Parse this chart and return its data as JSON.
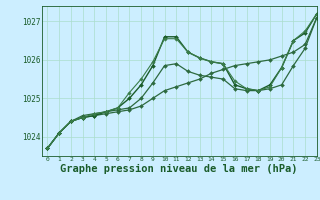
{
  "background_color": "#cceeff",
  "grid_color": "#aaddcc",
  "line_color_dark": "#1a5c2a",
  "xlabel": "Graphe pression niveau de la mer (hPa)",
  "xlabel_fontsize": 7.5,
  "ylim": [
    1023.5,
    1027.4
  ],
  "xlim": [
    -0.5,
    23
  ],
  "yticks": [
    1024,
    1025,
    1026,
    1027
  ],
  "xticks": [
    0,
    1,
    2,
    3,
    4,
    5,
    6,
    7,
    8,
    9,
    10,
    11,
    12,
    13,
    14,
    15,
    16,
    17,
    18,
    19,
    20,
    21,
    22,
    23
  ],
  "series": [
    {
      "x": [
        0,
        1,
        2,
        3,
        4,
        5,
        6,
        7,
        8,
        9,
        10,
        11,
        12,
        13,
        14,
        15,
        16,
        17,
        18,
        19,
        20,
        21,
        22,
        23
      ],
      "y": [
        1023.7,
        1024.1,
        1024.4,
        1024.5,
        1024.55,
        1024.6,
        1024.65,
        1024.7,
        1024.8,
        1025.0,
        1025.2,
        1025.3,
        1025.4,
        1025.5,
        1025.65,
        1025.75,
        1025.85,
        1025.9,
        1025.95,
        1026.0,
        1026.1,
        1026.2,
        1026.4,
        1027.1
      ],
      "color": "#2d6a3f",
      "lw": 0.9,
      "marker": "D",
      "ms": 2.0
    },
    {
      "x": [
        0,
        1,
        2,
        3,
        4,
        5,
        6,
        7,
        8,
        9,
        10,
        11,
        12,
        13,
        14,
        15,
        16,
        17,
        18,
        19,
        20,
        21,
        22,
        23
      ],
      "y": [
        1023.7,
        1024.1,
        1024.4,
        1024.55,
        1024.6,
        1024.65,
        1024.7,
        1024.75,
        1025.0,
        1025.4,
        1025.85,
        1025.9,
        1025.7,
        1025.6,
        1025.55,
        1025.5,
        1025.25,
        1025.2,
        1025.2,
        1025.25,
        1025.35,
        1025.85,
        1026.3,
        1027.1
      ],
      "color": "#2d6a3f",
      "lw": 0.9,
      "marker": "D",
      "ms": 2.0
    },
    {
      "x": [
        0,
        1,
        2,
        3,
        4,
        5,
        6,
        7,
        8,
        9,
        10,
        11,
        12,
        13,
        14,
        15,
        16,
        17,
        18,
        19,
        20,
        21,
        22,
        23
      ],
      "y": [
        1023.7,
        1024.1,
        1024.4,
        1024.5,
        1024.55,
        1024.65,
        1024.75,
        1025.0,
        1025.35,
        1025.85,
        1026.6,
        1026.6,
        1026.2,
        1026.05,
        1025.95,
        1025.9,
        1025.35,
        1025.25,
        1025.2,
        1025.35,
        1025.8,
        1026.5,
        1026.7,
        1027.2
      ],
      "color": "#1a5c2a",
      "lw": 1.0,
      "marker": "D",
      "ms": 2.0
    },
    {
      "x": [
        0,
        1,
        2,
        3,
        4,
        5,
        6,
        7,
        8,
        9,
        10,
        11,
        12,
        13,
        14,
        15,
        16,
        17,
        18,
        19,
        20,
        21,
        22,
        23
      ],
      "y": [
        1023.7,
        1024.1,
        1024.4,
        1024.5,
        1024.6,
        1024.65,
        1024.75,
        1025.15,
        1025.5,
        1025.95,
        1026.55,
        1026.55,
        1026.2,
        1026.05,
        1025.95,
        1025.9,
        1025.45,
        1025.25,
        1025.2,
        1025.3,
        1025.8,
        1026.5,
        1026.75,
        1027.2
      ],
      "color": "#3a7d4a",
      "lw": 0.8,
      "marker": "D",
      "ms": 1.8
    }
  ]
}
